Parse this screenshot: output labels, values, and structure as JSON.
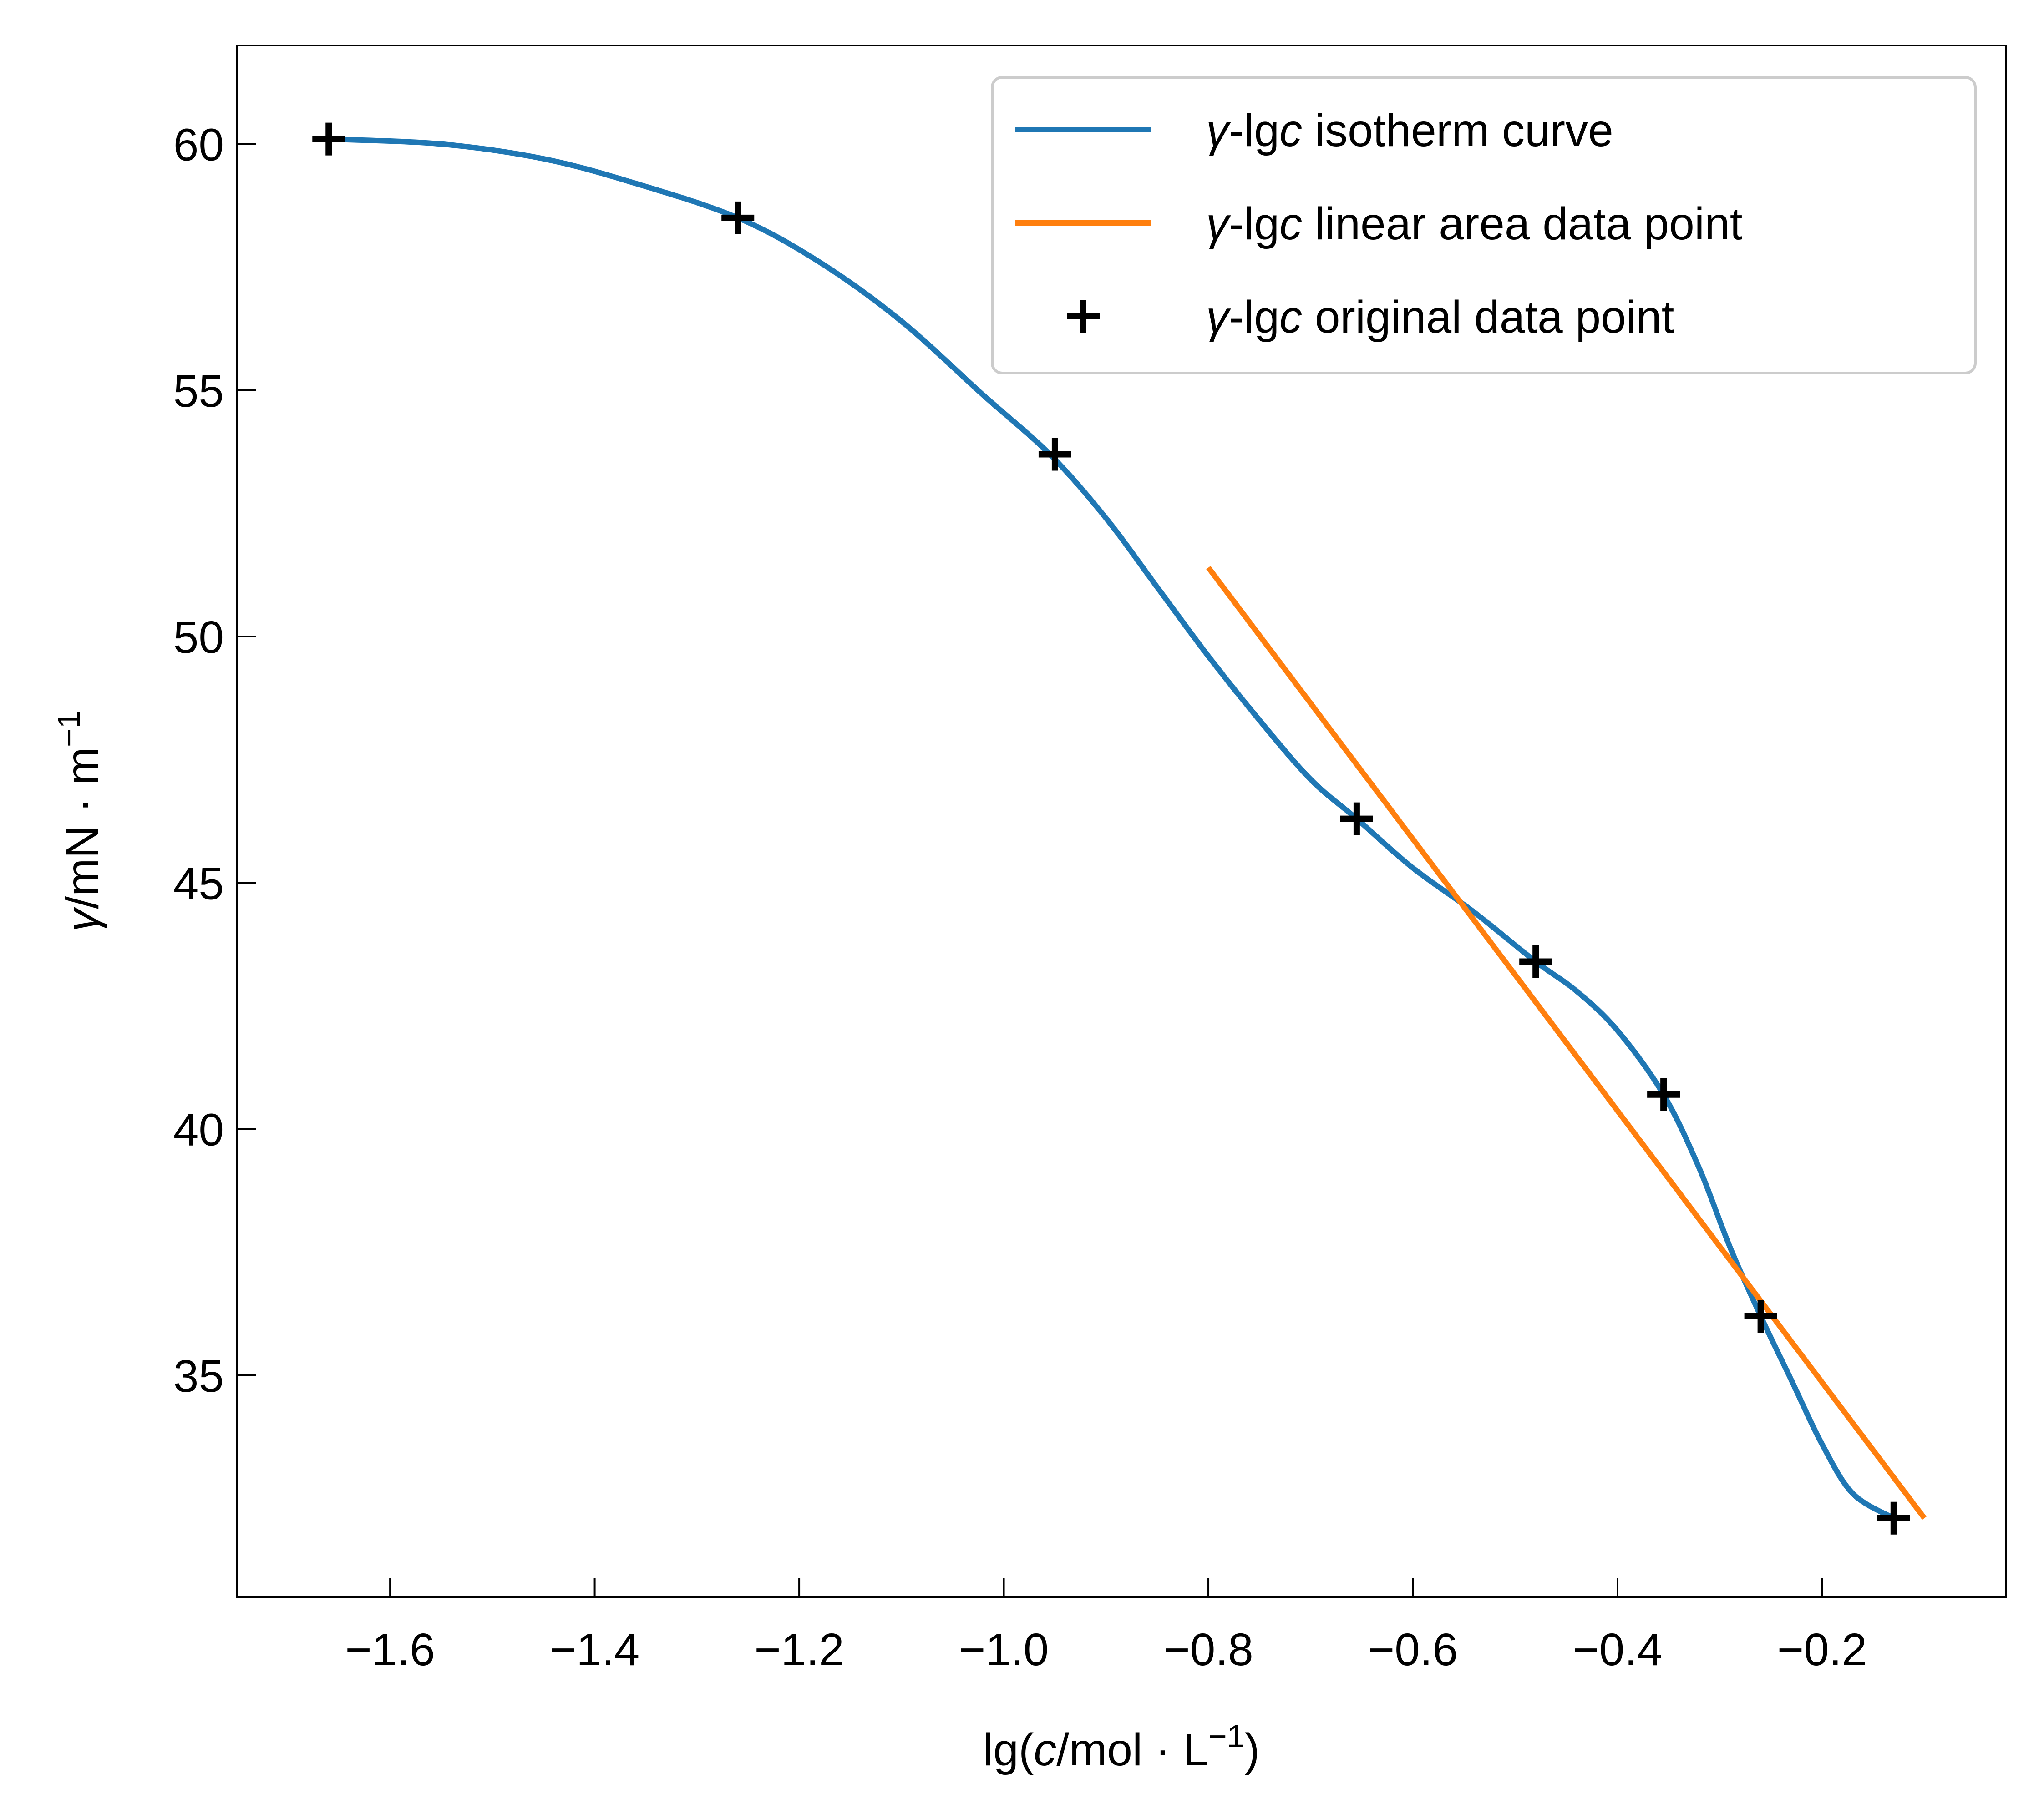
{
  "chart_data": {
    "type": "line",
    "title": "",
    "xlabel": {
      "pre": "lg(",
      "var": "c",
      "mid": "/mol · L",
      "sup": "−1",
      "post": ")"
    },
    "ylabel": {
      "var": "γ",
      "mid": "/mN · m",
      "sup": "−1"
    },
    "xlim": [
      -1.75,
      -0.02
    ],
    "ylim": [
      30.5,
      62
    ],
    "xticks": [
      -1.6,
      -1.4,
      -1.2,
      -1.0,
      -0.8,
      -0.6,
      -0.4,
      -0.2
    ],
    "xtick_labels": [
      "−1.6",
      "−1.4",
      "−1.2",
      "−1.0",
      "−0.8",
      "−0.6",
      "−0.4",
      "−0.2"
    ],
    "yticks": [
      35,
      40,
      45,
      50,
      55,
      60
    ],
    "ytick_labels": [
      "35",
      "40",
      "45",
      "50",
      "55",
      "60"
    ],
    "grid": false,
    "legend_position": "top-right",
    "series": [
      {
        "name": {
          "var": "γ",
          "mid": "-lg",
          "var2": "c",
          "post": " isotherm curve"
        },
        "kind": "line",
        "color": "#1f77b4",
        "x": [
          -1.66,
          -1.55,
          -1.45,
          -1.36,
          -1.26,
          -1.18,
          -1.1,
          -1.02,
          -0.955,
          -0.9,
          -0.85,
          -0.8,
          -0.75,
          -0.7,
          -0.655,
          -0.6,
          -0.54,
          -0.48,
          -0.44,
          -0.4,
          -0.355,
          -0.32,
          -0.29,
          -0.26,
          -0.23,
          -0.2,
          -0.17,
          -0.13
        ],
        "y": [
          60.1,
          60.0,
          59.7,
          59.2,
          58.5,
          57.6,
          56.4,
          54.9,
          53.7,
          52.4,
          51.0,
          49.6,
          48.3,
          47.1,
          46.3,
          45.3,
          44.4,
          43.4,
          42.8,
          42.0,
          40.7,
          39.2,
          37.6,
          36.2,
          34.9,
          33.6,
          32.6,
          32.1
        ]
      },
      {
        "name": {
          "var": "γ",
          "mid": "-lg",
          "var2": "c",
          "post": " linear area data point"
        },
        "kind": "line",
        "color": "#ff7f0e",
        "x": [
          -0.8,
          -0.1
        ],
        "y": [
          51.4,
          32.1
        ]
      },
      {
        "name": {
          "var": "γ",
          "mid": "-lg",
          "var2": "c",
          "post": " original data point"
        },
        "kind": "scatter",
        "marker": "+",
        "color": "#000000",
        "x": [
          -1.66,
          -1.26,
          -0.95,
          -0.655,
          -0.48,
          -0.355,
          -0.26,
          -0.13
        ],
        "y": [
          60.1,
          58.5,
          53.7,
          46.3,
          43.4,
          40.7,
          36.2,
          32.1
        ]
      }
    ]
  }
}
